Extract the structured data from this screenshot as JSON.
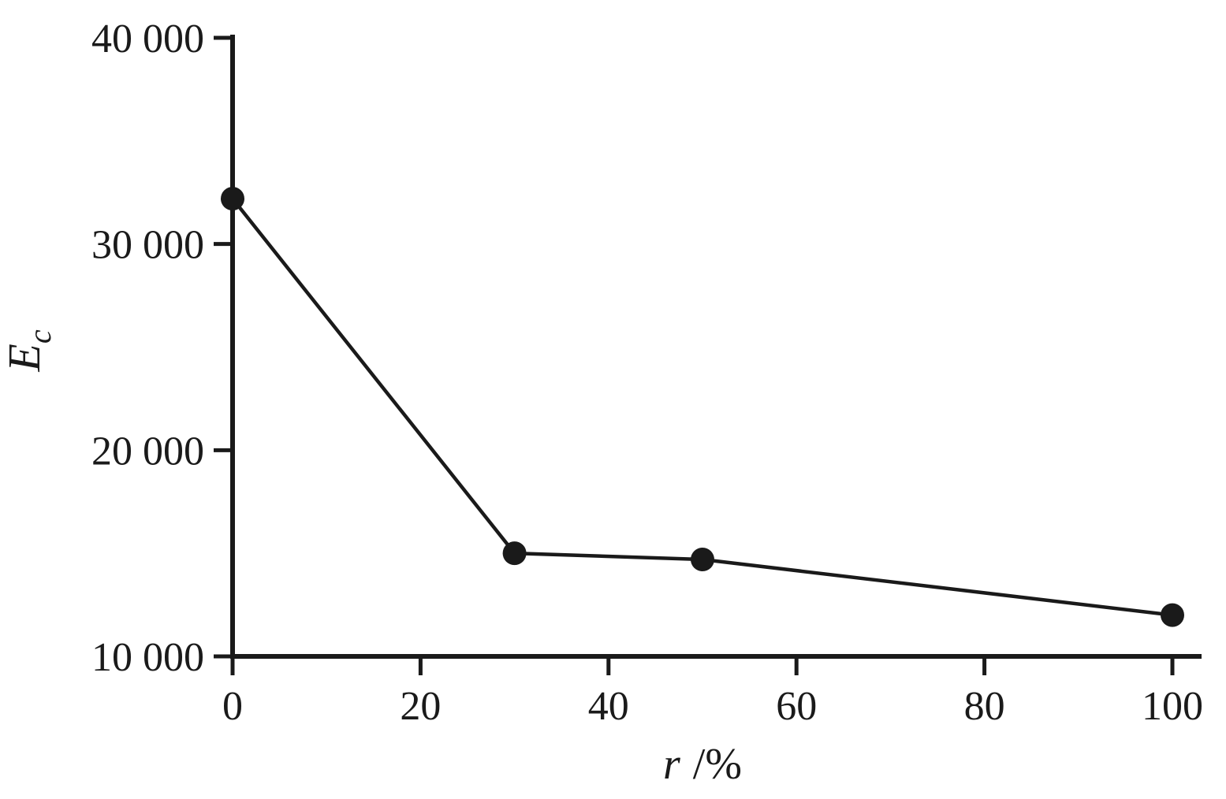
{
  "figure": {
    "background": "#ffffff",
    "ink_color": "#1a1a1a"
  },
  "chart_data": {
    "type": "line",
    "title": "",
    "xlabel": "r /%",
    "xlabel_var": "r",
    "xlabel_unit": "/%",
    "ylabel": "Ec",
    "ylabel_main": "E",
    "ylabel_sub": "c",
    "x": [
      0,
      30,
      50,
      100
    ],
    "y": [
      32200,
      15000,
      14700,
      12000
    ],
    "series": [
      {
        "name": "Ec",
        "x": [
          0,
          30,
          50,
          100
        ],
        "y": [
          32200,
          15000,
          14700,
          12000
        ]
      }
    ],
    "xlim": [
      0,
      100
    ],
    "ylim": [
      10000,
      40000
    ],
    "x_ticks": [
      0,
      20,
      40,
      60,
      80,
      100
    ],
    "x_tick_labels": [
      "0",
      "20",
      "40",
      "60",
      "80",
      "100"
    ],
    "y_ticks": [
      10000,
      20000,
      30000,
      40000
    ],
    "y_tick_labels": [
      "10 000",
      "20 000",
      "30 000",
      "40 000"
    ],
    "grid": false,
    "legend_position": "none",
    "line_color": "#1a1a1a",
    "axis_color": "#1a1a1a",
    "marker": "filled-circle",
    "marker_size": 15
  }
}
